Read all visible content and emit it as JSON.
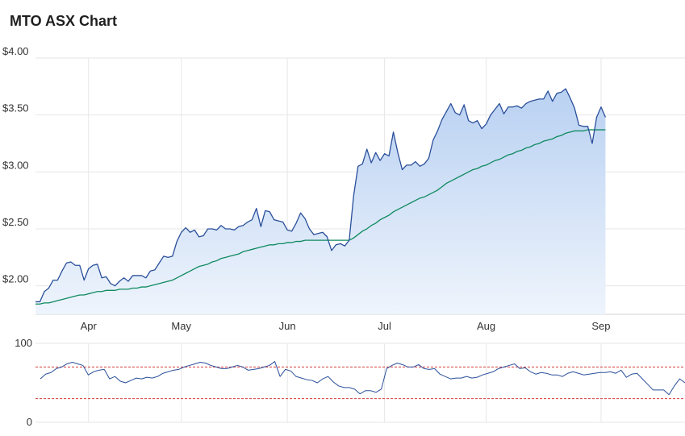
{
  "title": "MTO ASX Chart",
  "colors": {
    "price_line": "#2a4f9a",
    "price_fill_top": "#b9d1f2",
    "price_fill_bottom": "#eef4fc",
    "ma_line": "#0f8a5f",
    "rsi_line": "#2a4f9a",
    "rsi_band": "#d23b3b",
    "grid": "#e6e6e6"
  },
  "chart_data": [
    {
      "type": "area",
      "ylim": [
        1.75,
        4.0
      ],
      "yticks": [
        {
          "value": 2.0,
          "label": "$2.00"
        },
        {
          "value": 2.5,
          "label": "$2.50"
        },
        {
          "value": 3.0,
          "label": "$3.00"
        },
        {
          "value": 3.5,
          "label": "$3.50"
        },
        {
          "value": 4.0,
          "label": "$4.00"
        }
      ],
      "x_range": [
        0,
        147
      ],
      "xticks": [
        {
          "x": 12,
          "label": "Apr"
        },
        {
          "x": 33,
          "label": "May"
        },
        {
          "x": 57,
          "label": "Jun"
        },
        {
          "x": 79,
          "label": "Jul"
        },
        {
          "x": 102,
          "label": "Aug"
        },
        {
          "x": 128,
          "label": "Sep"
        }
      ],
      "price": [
        1.86,
        1.86,
        1.95,
        1.98,
        2.05,
        2.05,
        2.13,
        2.2,
        2.21,
        2.18,
        2.18,
        2.05,
        2.15,
        2.18,
        2.19,
        2.07,
        2.08,
        2.02,
        2.0,
        2.04,
        2.07,
        2.04,
        2.09,
        2.09,
        2.09,
        2.07,
        2.13,
        2.14,
        2.2,
        2.26,
        2.25,
        2.26,
        2.39,
        2.47,
        2.51,
        2.47,
        2.49,
        2.43,
        2.44,
        2.5,
        2.5,
        2.49,
        2.53,
        2.5,
        2.5,
        2.49,
        2.52,
        2.53,
        2.56,
        2.58,
        2.68,
        2.52,
        2.66,
        2.65,
        2.58,
        2.57,
        2.56,
        2.49,
        2.48,
        2.55,
        2.64,
        2.59,
        2.5,
        2.45,
        2.46,
        2.47,
        2.43,
        2.31,
        2.36,
        2.37,
        2.35,
        2.4,
        2.79,
        3.05,
        3.07,
        3.2,
        3.08,
        3.17,
        3.1,
        3.16,
        3.14,
        3.35,
        3.17,
        3.02,
        3.06,
        3.06,
        3.09,
        3.05,
        3.07,
        3.12,
        3.28,
        3.36,
        3.46,
        3.53,
        3.6,
        3.52,
        3.5,
        3.59,
        3.45,
        3.43,
        3.45,
        3.38,
        3.42,
        3.5,
        3.55,
        3.6,
        3.51,
        3.57,
        3.57,
        3.58,
        3.56,
        3.6,
        3.62,
        3.63,
        3.64,
        3.64,
        3.71,
        3.62,
        3.69,
        3.7,
        3.73,
        3.65,
        3.56,
        3.41,
        3.4,
        3.4,
        3.25,
        3.48,
        3.57,
        3.48
      ],
      "moving_average": [
        1.84,
        1.84,
        1.85,
        1.85,
        1.86,
        1.87,
        1.88,
        1.89,
        1.9,
        1.91,
        1.92,
        1.92,
        1.93,
        1.94,
        1.95,
        1.95,
        1.96,
        1.96,
        1.96,
        1.97,
        1.97,
        1.97,
        1.98,
        1.98,
        1.99,
        1.99,
        2.0,
        2.01,
        2.02,
        2.03,
        2.04,
        2.05,
        2.07,
        2.09,
        2.11,
        2.13,
        2.15,
        2.17,
        2.18,
        2.19,
        2.21,
        2.22,
        2.24,
        2.25,
        2.26,
        2.27,
        2.28,
        2.3,
        2.31,
        2.32,
        2.33,
        2.34,
        2.35,
        2.36,
        2.36,
        2.37,
        2.37,
        2.38,
        2.38,
        2.39,
        2.39,
        2.4,
        2.4,
        2.4,
        2.4,
        2.4,
        2.4,
        2.4,
        2.4,
        2.4,
        2.4,
        2.4,
        2.42,
        2.45,
        2.48,
        2.5,
        2.53,
        2.55,
        2.58,
        2.6,
        2.62,
        2.65,
        2.67,
        2.69,
        2.71,
        2.73,
        2.75,
        2.77,
        2.78,
        2.8,
        2.82,
        2.84,
        2.87,
        2.9,
        2.92,
        2.94,
        2.96,
        2.98,
        3.0,
        3.02,
        3.03,
        3.05,
        3.06,
        3.08,
        3.1,
        3.11,
        3.13,
        3.15,
        3.16,
        3.18,
        3.19,
        3.21,
        3.22,
        3.24,
        3.25,
        3.27,
        3.28,
        3.29,
        3.31,
        3.32,
        3.34,
        3.35,
        3.36,
        3.36,
        3.36,
        3.37,
        3.37,
        3.37,
        3.37,
        3.37
      ]
    },
    {
      "type": "line",
      "ylim": [
        0,
        100
      ],
      "yticks": [
        {
          "value": 0,
          "label": "0"
        },
        {
          "value": 100,
          "label": "100"
        }
      ],
      "bands": [
        70,
        30
      ],
      "rsi": [
        55,
        61,
        63,
        68,
        70,
        74,
        76,
        74,
        72,
        60,
        64,
        66,
        67,
        55,
        58,
        52,
        50,
        53,
        56,
        55,
        57,
        56,
        58,
        62,
        64,
        66,
        67,
        70,
        72,
        74,
        76,
        75,
        72,
        70,
        68,
        68,
        70,
        72,
        70,
        66,
        67,
        68,
        70,
        72,
        77,
        58,
        67,
        65,
        58,
        56,
        54,
        53,
        50,
        55,
        58,
        51,
        46,
        44,
        44,
        42,
        36,
        40,
        40,
        38,
        42,
        68,
        72,
        75,
        73,
        70,
        70,
        73,
        68,
        67,
        68,
        61,
        58,
        55,
        56,
        56,
        58,
        56,
        57,
        60,
        62,
        64,
        68,
        70,
        72,
        74,
        68,
        69,
        64,
        61,
        63,
        62,
        60,
        60,
        58,
        62,
        64,
        62,
        60,
        61,
        62,
        63,
        63,
        64,
        62,
        66,
        57,
        61,
        62,
        55,
        48,
        41,
        41,
        41,
        35,
        46,
        55,
        50
      ]
    }
  ]
}
